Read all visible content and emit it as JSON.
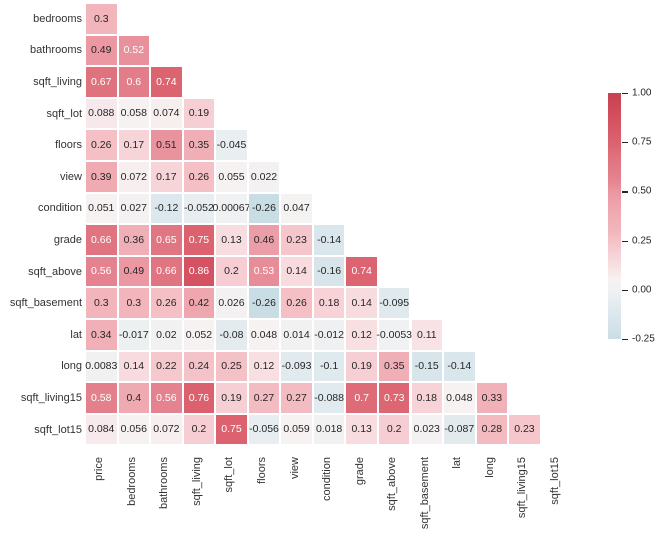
{
  "chart_data": {
    "type": "heatmap",
    "title": "",
    "description": "Lower-triangle correlation heatmap of house sales features",
    "x_labels": [
      "price",
      "bedrooms",
      "bathrooms",
      "sqft_living",
      "sqft_lot",
      "floors",
      "view",
      "condition",
      "grade",
      "sqft_above",
      "sqft_basement",
      "lat",
      "long",
      "sqft_living15",
      "sqft_lot15"
    ],
    "y_labels": [
      "bedrooms",
      "bathrooms",
      "sqft_living",
      "sqft_lot",
      "floors",
      "view",
      "condition",
      "grade",
      "sqft_above",
      "sqft_basement",
      "lat",
      "long",
      "sqft_living15",
      "sqft_lot15"
    ],
    "rows": [
      [
        "0.3"
      ],
      [
        "0.49",
        "0.52"
      ],
      [
        "0.67",
        "0.6",
        "0.74"
      ],
      [
        "0.088",
        "0.058",
        "0.074",
        "0.19"
      ],
      [
        "0.26",
        "0.17",
        "0.51",
        "0.35",
        "-0.045"
      ],
      [
        "0.39",
        "0.072",
        "0.17",
        "0.26",
        "0.055",
        "0.022"
      ],
      [
        "0.051",
        "0.027",
        "-0.12",
        "-0.052",
        "0.00067",
        "-0.26",
        "0.047"
      ],
      [
        "0.66",
        "0.36",
        "0.65",
        "0.75",
        "0.13",
        "0.46",
        "0.23",
        "-0.14"
      ],
      [
        "0.56",
        "0.49",
        "0.66",
        "0.86",
        "0.2",
        "0.53",
        "0.14",
        "-0.16",
        "0.74"
      ],
      [
        "0.3",
        "0.3",
        "0.26",
        "0.42",
        "0.026",
        "-0.26",
        "0.26",
        "0.18",
        "0.14",
        "-0.095"
      ],
      [
        "0.34",
        "-0.017",
        "0.02",
        "0.052",
        "-0.08",
        "0.048",
        "0.014",
        "-0.012",
        "0.12",
        "-0.0053",
        "0.11"
      ],
      [
        "0.0083",
        "0.14",
        "0.22",
        "0.24",
        "0.25",
        "0.12",
        "-0.093",
        "-0.1",
        "0.19",
        "0.35",
        "-0.15",
        "-0.14"
      ],
      [
        "0.58",
        "0.4",
        "0.56",
        "0.76",
        "0.19",
        "0.27",
        "0.27",
        "-0.088",
        "0.7",
        "0.73",
        "0.18",
        "0.048",
        "0.33"
      ],
      [
        "0.084",
        "0.056",
        "0.072",
        "0.2",
        "0.75",
        "-0.056",
        "0.059",
        "0.018",
        "0.13",
        "0.2",
        "0.023",
        "-0.087",
        "0.28",
        "0.23"
      ]
    ],
    "colorbar": {
      "tick_labels": [
        "1.00",
        "0.75",
        "0.50",
        "0.25",
        "0.00",
        "-0.25"
      ],
      "tick_values": [
        1.0,
        0.75,
        0.5,
        0.25,
        0.0,
        -0.25
      ],
      "display_min": -0.25,
      "display_max": 1.0,
      "position": "right"
    },
    "colors": {
      "stops": [
        [
          -1.0,
          "#5fa7bf"
        ],
        [
          -0.26,
          "#c9dde4"
        ],
        [
          -0.12,
          "#dce8ed"
        ],
        [
          0.0,
          "#f0f1f2"
        ],
        [
          0.06,
          "#f7f2f2"
        ],
        [
          0.12,
          "#f8dfe2"
        ],
        [
          0.2,
          "#f6cdd2"
        ],
        [
          0.3,
          "#f2b5bc"
        ],
        [
          0.42,
          "#eea6af"
        ],
        [
          0.5,
          "#ea96a1"
        ],
        [
          0.56,
          "#e4838f"
        ],
        [
          0.66,
          "#e07480"
        ],
        [
          0.75,
          "#dc626f"
        ],
        [
          0.86,
          "#d45261"
        ],
        [
          1.0,
          "#c94150"
        ]
      ],
      "white_text_threshold": 0.52,
      "dark_text": "#262626",
      "light_text": "#ffffff",
      "background": "#ffffff"
    },
    "grid": false,
    "legend_position": "right"
  }
}
